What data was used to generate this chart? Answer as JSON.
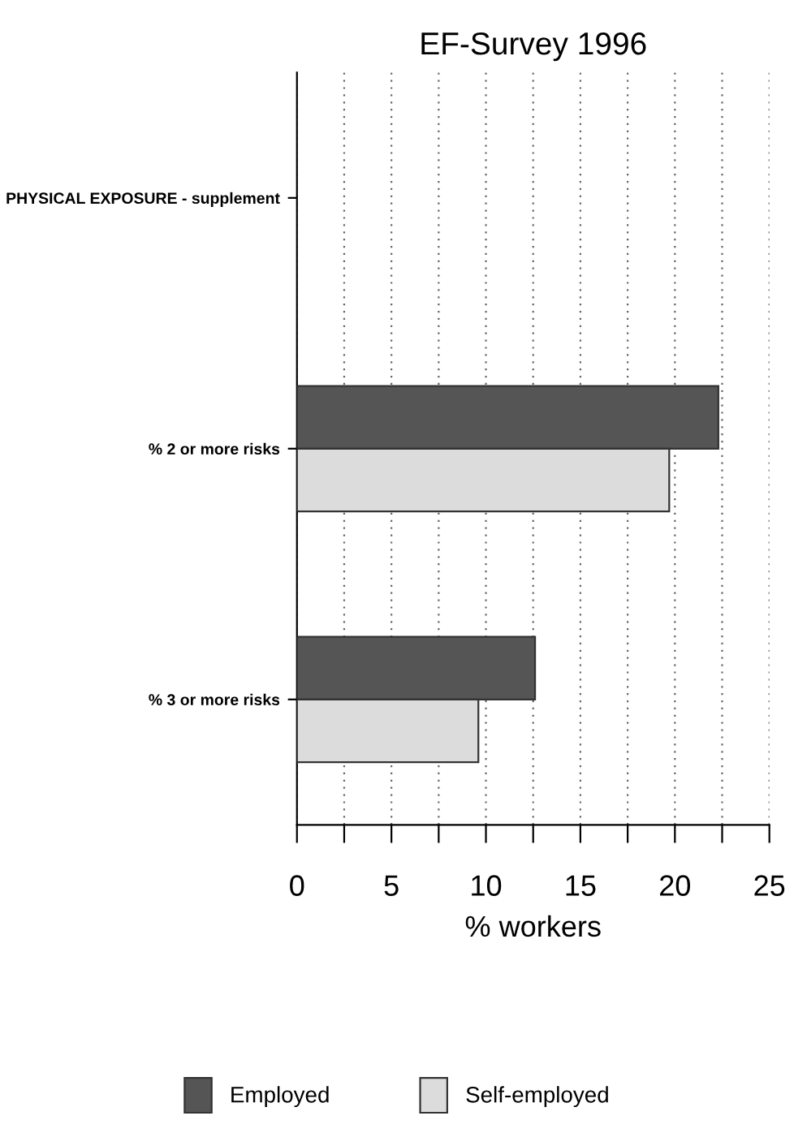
{
  "chart_data": {
    "type": "bar",
    "orientation": "horizontal",
    "title": "EF-Survey 1996",
    "xlabel": "% workers",
    "categories": [
      "PHYSICAL EXPOSURE - supplement",
      "% 2 or more risks",
      "% 3 or more risks"
    ],
    "series": [
      {
        "name": "Employed",
        "color": "#555555",
        "values": [
          null,
          22.3,
          12.6
        ]
      },
      {
        "name": "Self-employed",
        "color": "#dcdcdc",
        "values": [
          null,
          19.7,
          9.6
        ]
      }
    ],
    "xlim": [
      0,
      25
    ],
    "xticks": [
      0,
      {
        "value": 2.5,
        "label": null
      },
      5,
      {
        "value": 7.5,
        "label": null
      },
      10,
      {
        "value": 12.5,
        "label": null
      },
      15,
      {
        "value": 17.5,
        "label": null
      },
      20,
      {
        "value": 22.5,
        "label": null
      },
      25
    ],
    "grid": "x",
    "legend": "bottom"
  }
}
